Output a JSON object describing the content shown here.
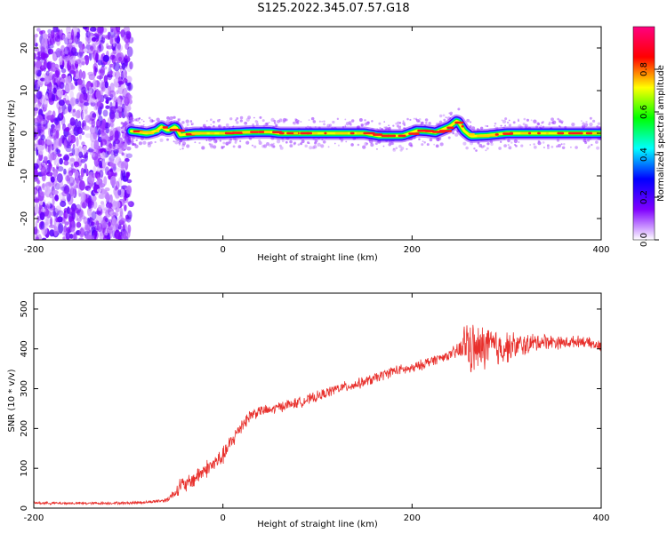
{
  "title": "S125.2022.345.07.57.G18",
  "chart_data": [
    {
      "type": "heatmap",
      "xlabel": "Height of straight line (km)",
      "ylabel": "Frequency (Hz)",
      "xlim": [
        -200,
        400
      ],
      "ylim": [
        -25,
        25
      ],
      "xticks": [
        -200,
        0,
        200,
        400
      ],
      "yticks": [
        -20,
        -10,
        0,
        10,
        20
      ],
      "colorbar": {
        "label": "Normalized spectral amplitude",
        "range": [
          0,
          1
        ],
        "ticks": [
          0.0,
          0.2,
          0.4,
          0.6,
          0.8
        ],
        "colors": [
          "#ffffff",
          "#8000ff",
          "#0000ff",
          "#00ffff",
          "#00ff00",
          "#ffff00",
          "#ff0000",
          "#ff0080"
        ]
      },
      "noise_region_x": [
        -200,
        -97
      ],
      "ridge": [
        {
          "x": -97,
          "y": 0.5
        },
        {
          "x": -80,
          "y": 0
        },
        {
          "x": -70,
          "y": 0.6
        },
        {
          "x": -65,
          "y": 1.5
        },
        {
          "x": -58,
          "y": 0.6
        },
        {
          "x": -50,
          "y": 1.6
        },
        {
          "x": -45,
          "y": -0.4
        },
        {
          "x": -30,
          "y": 0
        },
        {
          "x": 0,
          "y": 0
        },
        {
          "x": 30,
          "y": 0.3
        },
        {
          "x": 50,
          "y": 0.3
        },
        {
          "x": 60,
          "y": 0
        },
        {
          "x": 120,
          "y": 0
        },
        {
          "x": 150,
          "y": 0
        },
        {
          "x": 165,
          "y": -0.6
        },
        {
          "x": 190,
          "y": -0.6
        },
        {
          "x": 205,
          "y": 0.6
        },
        {
          "x": 215,
          "y": 0.5
        },
        {
          "x": 225,
          "y": 0.2
        },
        {
          "x": 240,
          "y": 1.6
        },
        {
          "x": 248,
          "y": 3.0
        },
        {
          "x": 255,
          "y": 0.6
        },
        {
          "x": 262,
          "y": -0.7
        },
        {
          "x": 280,
          "y": -0.5
        },
        {
          "x": 300,
          "y": 0
        },
        {
          "x": 330,
          "y": 0
        },
        {
          "x": 360,
          "y": 0
        },
        {
          "x": 400,
          "y": 0
        }
      ]
    },
    {
      "type": "line",
      "xlabel": "Height of straight line (km)",
      "ylabel": "SNR (10 * v/v)",
      "xlim": [
        -200,
        400
      ],
      "ylim": [
        0,
        540
      ],
      "xticks": [
        -200,
        0,
        200,
        400
      ],
      "yticks": [
        0,
        100,
        200,
        300,
        400,
        500
      ],
      "color": "#e8302c",
      "series": [
        {
          "x": [
            -200,
            -150,
            -100,
            -80,
            -60,
            -50,
            -45,
            -40,
            -30,
            -20,
            -10,
            0,
            10,
            20,
            30,
            40,
            50,
            60,
            80,
            100,
            120,
            140,
            160,
            180,
            200,
            220,
            240,
            250,
            258,
            262,
            270,
            280,
            290,
            300,
            320,
            340,
            360,
            380,
            400
          ],
          "y": [
            13,
            12,
            13,
            15,
            20,
            40,
            60,
            55,
            75,
            95,
            110,
            130,
            170,
            210,
            235,
            245,
            245,
            255,
            265,
            280,
            300,
            310,
            325,
            345,
            350,
            370,
            385,
            395,
            420,
            400,
            395,
            410,
            400,
            405,
            410,
            420,
            415,
            420,
            405
          ],
          "noise": [
            3,
            3,
            3,
            3,
            5,
            12,
            20,
            18,
            20,
            20,
            20,
            20,
            20,
            18,
            15,
            12,
            12,
            12,
            12,
            12,
            12,
            12,
            12,
            12,
            12,
            12,
            10,
            25,
            55,
            60,
            55,
            50,
            45,
            35,
            25,
            18,
            14,
            12,
            12
          ]
        }
      ]
    }
  ]
}
